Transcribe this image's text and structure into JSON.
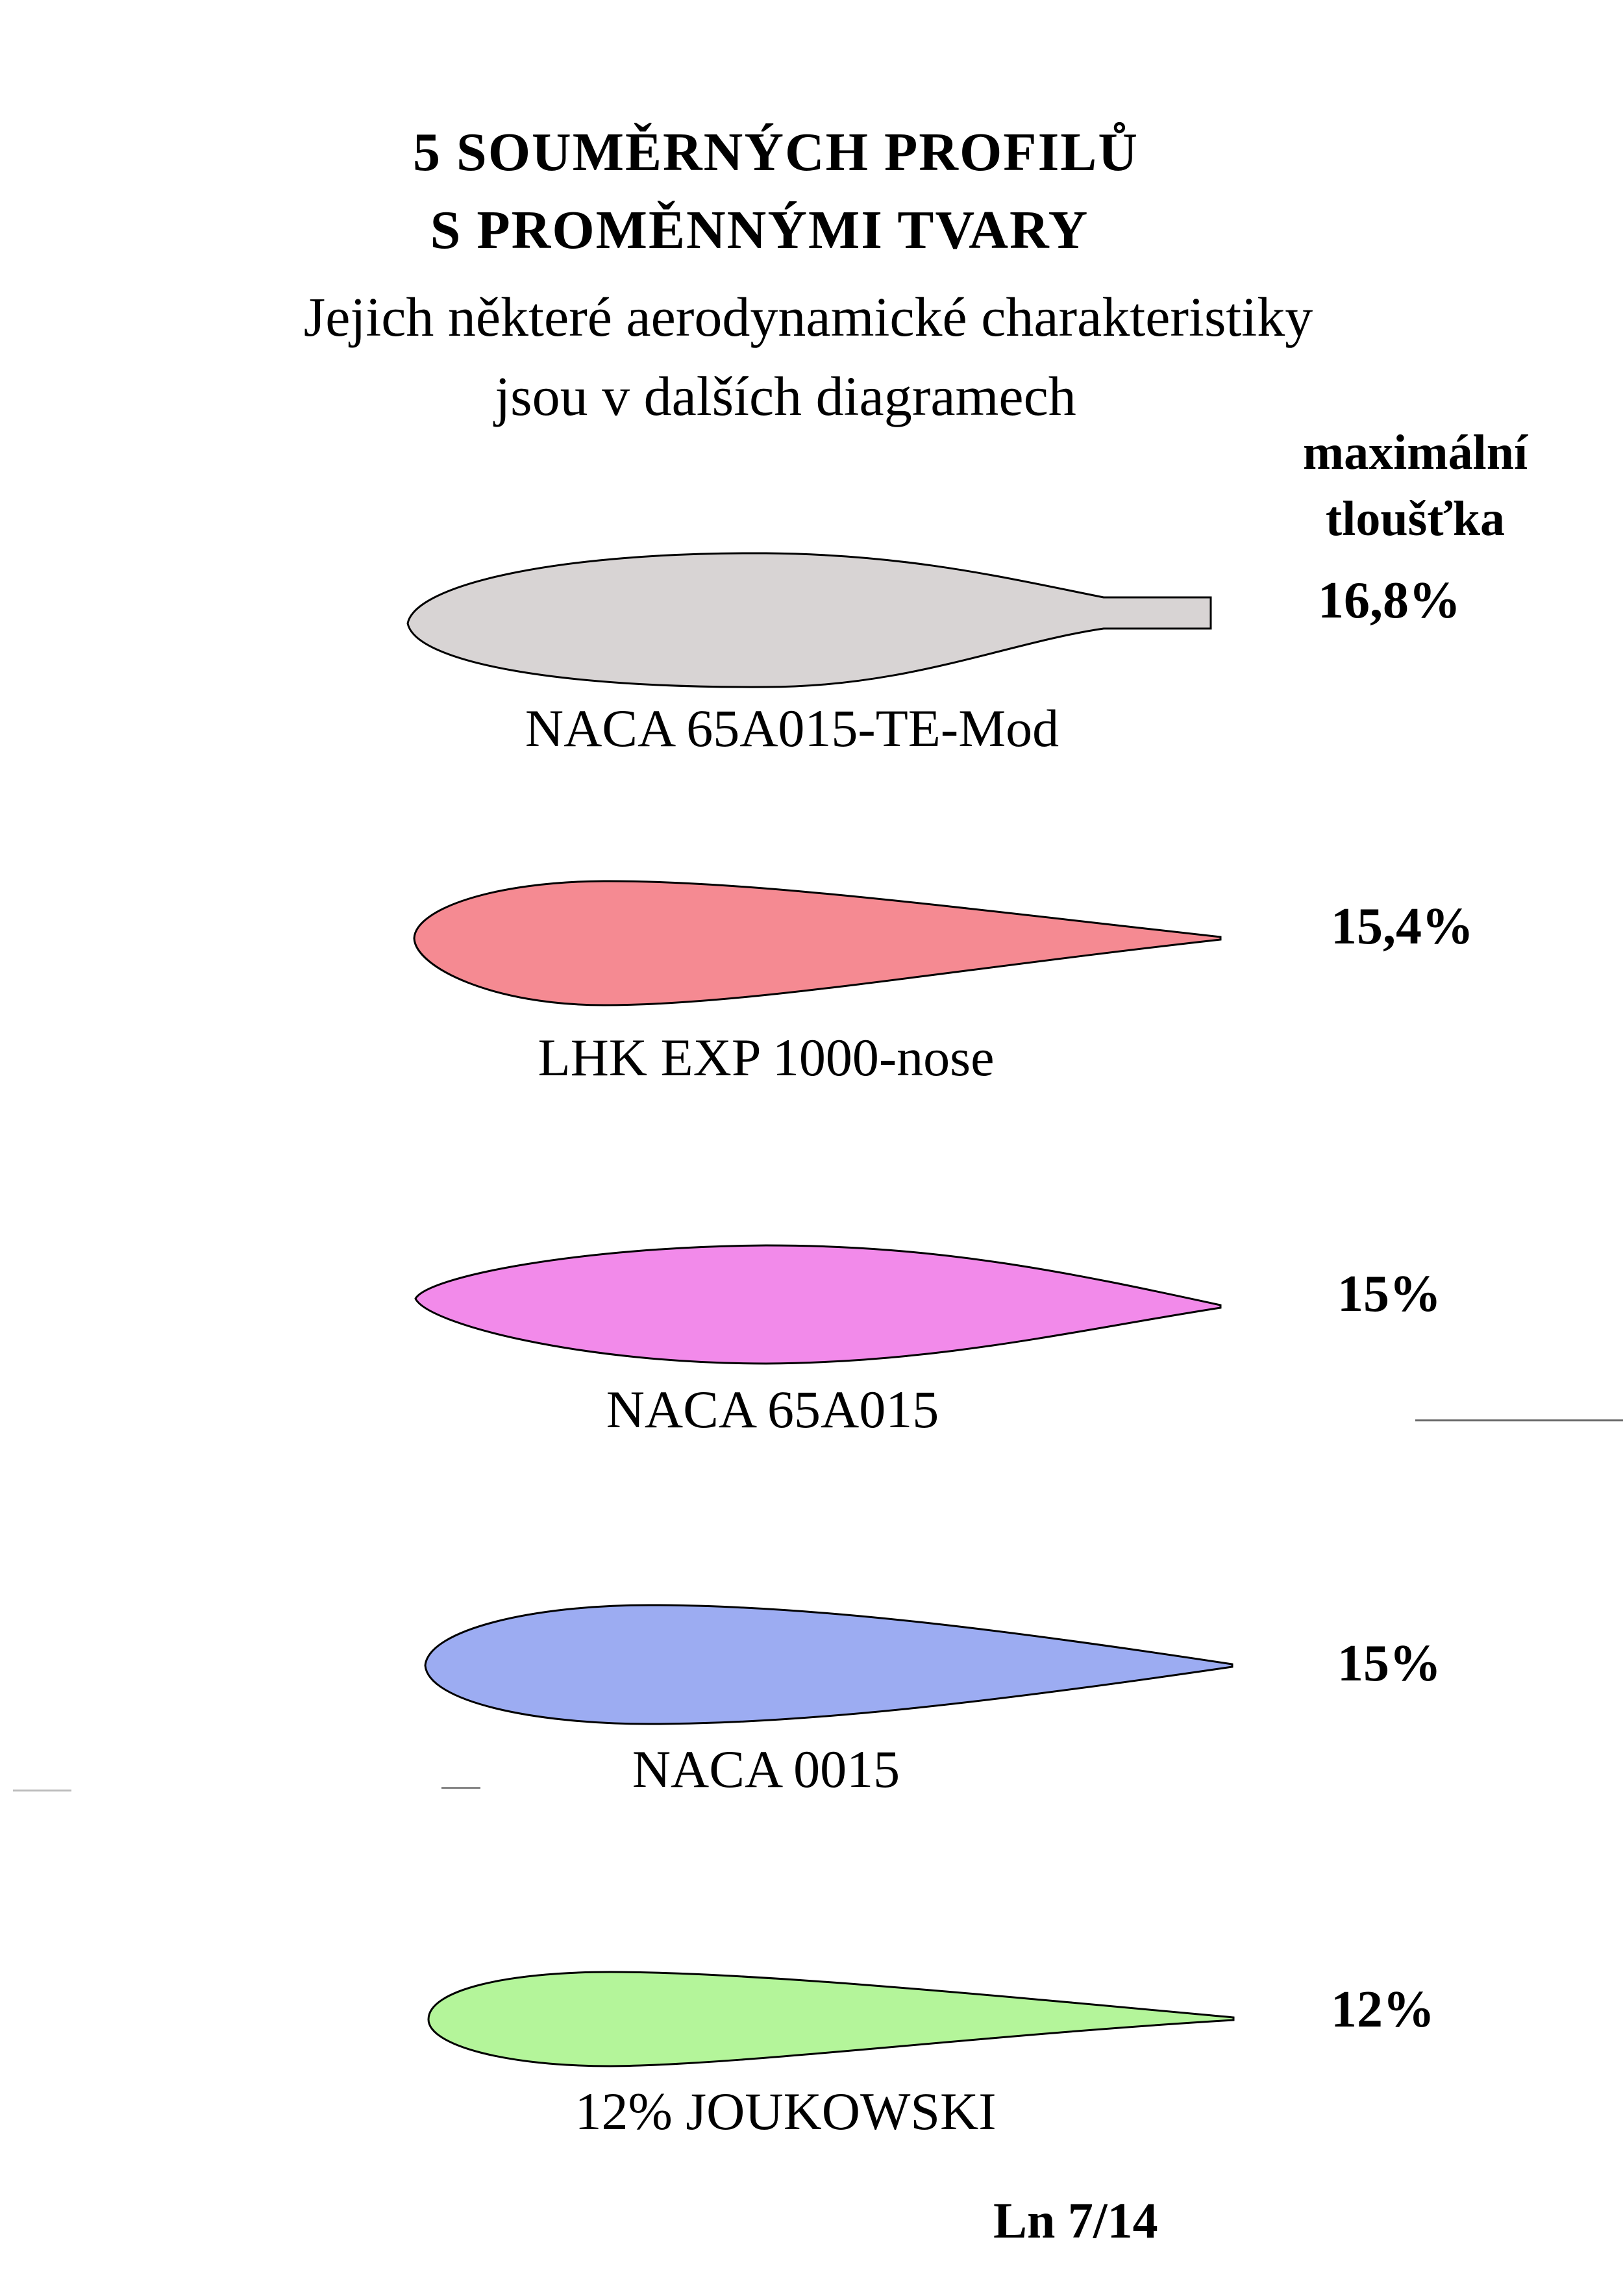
{
  "header": {
    "title_line1": "5  SOUMĚRNÝCH  PROFILŮ",
    "title_line2": "S  PROMĚNNÝMI TVARY",
    "subtitle_line1": "Jejich některé aerodynamické charakteristiky",
    "subtitle_line2": "jsou v dalších diagramech"
  },
  "thickness_header": {
    "line1": "maximální",
    "line2": "tloušťka"
  },
  "profiles": [
    {
      "name": "NACA 65A015-TE-Mod",
      "max_thickness": "16,8%",
      "fill": "#d8d4d4"
    },
    {
      "name": "LHK EXP 1000-nose",
      "max_thickness": "15,4%",
      "fill": "#f58a92"
    },
    {
      "name": "NACA 65A015",
      "max_thickness": "15%",
      "fill": "#f28aea"
    },
    {
      "name": "NACA 0015",
      "max_thickness": "15%",
      "fill": "#9cacf2"
    },
    {
      "name": "12% JOUKOWSKI",
      "max_thickness": "12%",
      "fill": "#b4f59a"
    }
  ],
  "footer": {
    "page_ref": "Ln 7/14"
  }
}
